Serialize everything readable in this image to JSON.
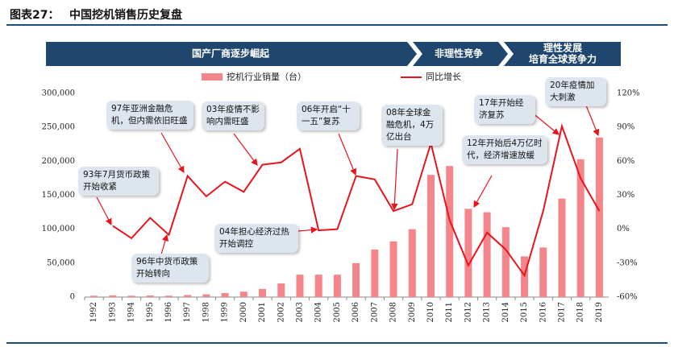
{
  "header": {
    "label": "图表27：",
    "title": "中国挖机销售历史复盘"
  },
  "phases": [
    {
      "lines": [
        "国产厂商逐步崛起"
      ]
    },
    {
      "lines": [
        "非理性竞争"
      ]
    },
    {
      "lines": [
        "理性发展",
        "培育全球竞争力"
      ]
    }
  ],
  "chart_data": {
    "type": "bar-line",
    "categories": [
      "1992",
      "1993",
      "1994",
      "1995",
      "1996",
      "1997",
      "1998",
      "1999",
      "2000",
      "2001",
      "2002",
      "2003",
      "2004",
      "2005",
      "2006",
      "2007",
      "2008",
      "2009",
      "2010",
      "2011",
      "2012",
      "2013",
      "2014",
      "2015",
      "2016",
      "2017",
      "2018",
      "2019"
    ],
    "series": [
      {
        "name": "挖机行业销量（台）",
        "type": "bar",
        "color": "#f4858a",
        "values": [
          2000,
          2500,
          2000,
          2300,
          2000,
          3000,
          4000,
          6000,
          8000,
          12000,
          20000,
          33000,
          33000,
          33000,
          50000,
          70000,
          82000,
          100000,
          180000,
          193000,
          130000,
          125000,
          103000,
          60000,
          73000,
          145000,
          203000,
          235000
        ]
      },
      {
        "name": "同比增长",
        "type": "line",
        "axis": "y2",
        "color": "#e8141c",
        "values": [
          null,
          3,
          -8,
          10,
          -5,
          47,
          29,
          42,
          33,
          57,
          59,
          71,
          -1,
          0,
          47,
          44,
          16,
          22,
          76,
          8,
          -32,
          -3,
          -18,
          -41,
          16,
          91,
          45,
          16
        ]
      }
    ],
    "ylim": [
      0,
      300000
    ],
    "yticks": [
      0,
      {
        "value": 50000,
        "label": "50,000"
      },
      {
        "value": 100000,
        "label": "100,000"
      },
      {
        "value": 150000,
        "label": "150,000"
      },
      {
        "value": 200000,
        "label": "200,000"
      },
      {
        "value": 250000,
        "label": "250,000"
      },
      {
        "value": 300000,
        "label": "300,000"
      }
    ],
    "y2lim": [
      -60,
      120
    ],
    "y2ticks": [
      {
        "value": -60,
        "label": "-60%"
      },
      {
        "value": -30,
        "label": "-30%"
      },
      {
        "value": 0,
        "label": "0%"
      },
      {
        "value": 30,
        "label": "30%"
      },
      {
        "value": 60,
        "label": "60%"
      },
      {
        "value": 90,
        "label": "90%"
      },
      {
        "value": 120,
        "label": "120%"
      }
    ],
    "annotations": [
      {
        "text": "93年7月货币政策开始收紧"
      },
      {
        "text": "97年亚洲金融危机，但内需依旧旺盛"
      },
      {
        "text": "03年疫情不影响内需旺盛"
      },
      {
        "text": "06年开启“十一五”复苏"
      },
      {
        "text": "08年全球金融危机，4万亿出台"
      },
      {
        "text": "12年开始后4万亿时代，经济增速放缓"
      },
      {
        "text": "17年开始经济复苏"
      },
      {
        "text": "20年疫情加大刺激"
      },
      {
        "text": "04年担心经济过热开始调控"
      },
      {
        "text": "96年中货币政策开始转向"
      }
    ]
  }
}
